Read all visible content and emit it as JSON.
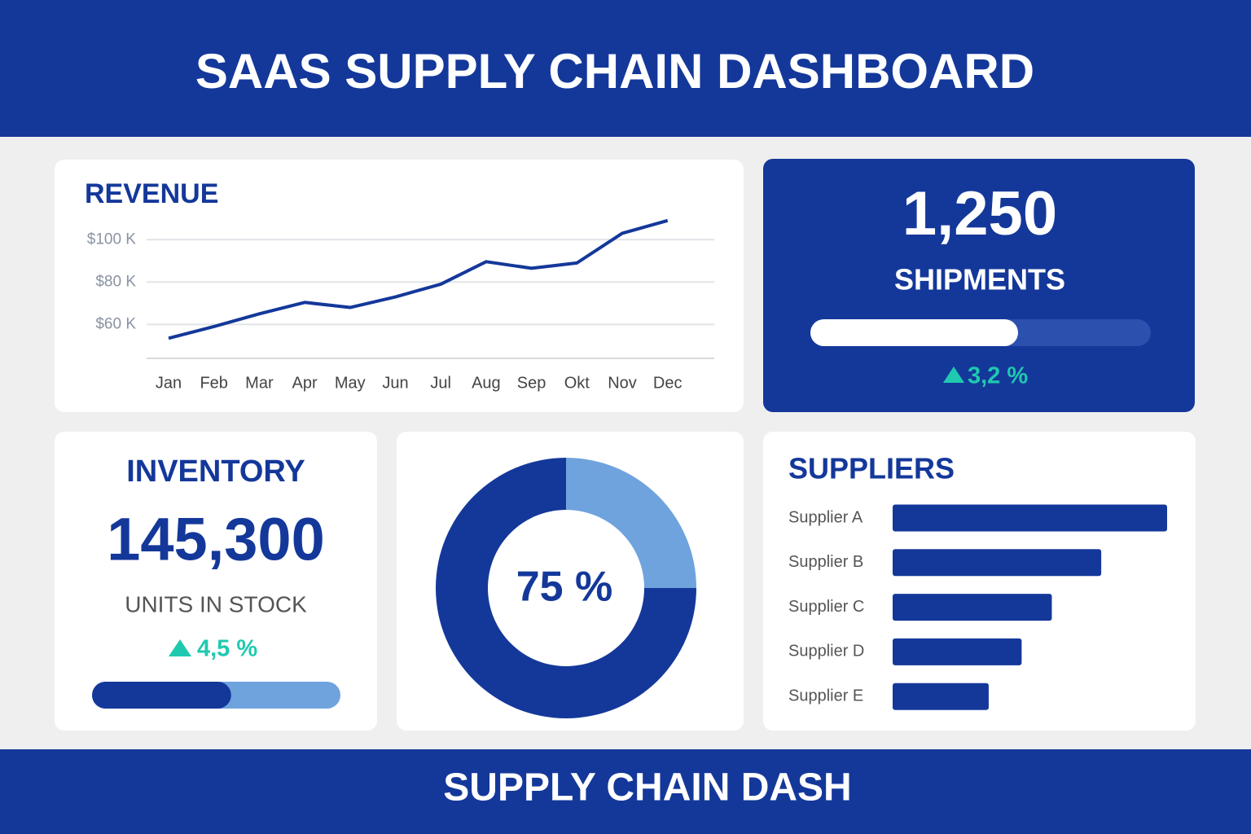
{
  "header": {
    "title": "SAAS SUPPLY CHAIN DASHBOARD"
  },
  "kpis": {
    "shipments": {
      "value": "1,250",
      "label": "SHIPMENTS",
      "progress": 61,
      "change": "3,2 %"
    },
    "inventory": {
      "title": "INVENTORY",
      "value": "145,300",
      "label": "UNITS IN STOCK",
      "change": "4,5 %",
      "progress": 56
    }
  },
  "chart_data": [
    {
      "type": "line",
      "title": "REVENUE",
      "categories": [
        "Jan",
        "Feb",
        "Mar",
        "Apr",
        "May",
        "Jun",
        "Jul",
        "Aug",
        "Sep",
        "Okt",
        "Nov",
        "Dec"
      ],
      "values": [
        53500,
        59000,
        65000,
        70400,
        68000,
        73000,
        79000,
        89600,
        86500,
        89000,
        103000,
        109000
      ],
      "color": "#14389a",
      "ylim": [
        44000,
        112000
      ],
      "yticks": [
        {
          "value": 60000,
          "label": "$60 K"
        },
        {
          "value": 80000,
          "label": "$80 K"
        },
        {
          "value": 100000,
          "label": "$100 K"
        }
      ],
      "grid": true
    },
    {
      "type": "donut",
      "values": [
        75,
        25
      ],
      "colors": [
        "#14389a",
        "#6fa3dd"
      ],
      "center_label": "75 %"
    },
    {
      "type": "bar",
      "orientation": "horizontal",
      "title": "SUPPLIERS",
      "categories": [
        "Supplier A",
        "Supplier B",
        "Supplier C",
        "Supplier D",
        "Supplier E"
      ],
      "values": [
        100,
        76,
        58,
        47,
        35
      ],
      "xlim": [
        0,
        100
      ],
      "color": "#14389a"
    }
  ],
  "footer": {
    "title": "SUPPLY CHAIN DASH"
  }
}
